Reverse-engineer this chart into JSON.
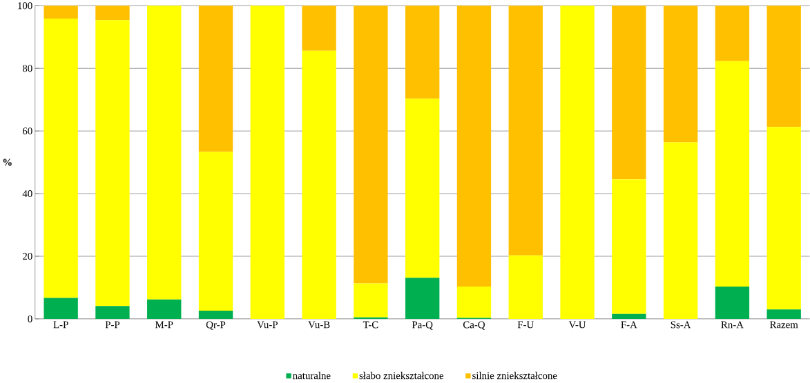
{
  "chart_data": {
    "type": "bar",
    "stacked": true,
    "ylabel": "%",
    "categories": [
      "L-P",
      "P-P",
      "M-P",
      "Qr-P",
      "Vu-P",
      "Vu-B",
      "T-C",
      "Pa-Q",
      "Ca-Q",
      "F-U",
      "V-U",
      "F-A",
      "Ss-A",
      "Rn-A",
      "Razem"
    ],
    "series": [
      {
        "name": "naturalne",
        "color": "#00b050",
        "values": [
          6.7,
          4.1,
          6.2,
          2.6,
          0,
          0,
          0.5,
          13.1,
          0.3,
          0,
          0,
          1.6,
          0,
          10.3,
          3
        ]
      },
      {
        "name": "słabo zniekształcone",
        "color": "#ffff00",
        "values": [
          89.2,
          91.3,
          93.8,
          50.7,
          100,
          85.6,
          10.8,
          57.2,
          10,
          20.3,
          100,
          43,
          56.4,
          72,
          58.3
        ]
      },
      {
        "name": "silnie zniekształcone",
        "color": "#ffc000",
        "values": [
          4.1,
          4.6,
          0,
          46.7,
          0,
          14.4,
          88.7,
          29.7,
          89.7,
          79.7,
          0,
          55.4,
          43.6,
          17.7,
          38.7
        ]
      }
    ],
    "ylim": [
      0,
      100
    ],
    "yticks": [
      0,
      20,
      40,
      60,
      80,
      100
    ],
    "grid": "y",
    "legend": "bottom"
  }
}
